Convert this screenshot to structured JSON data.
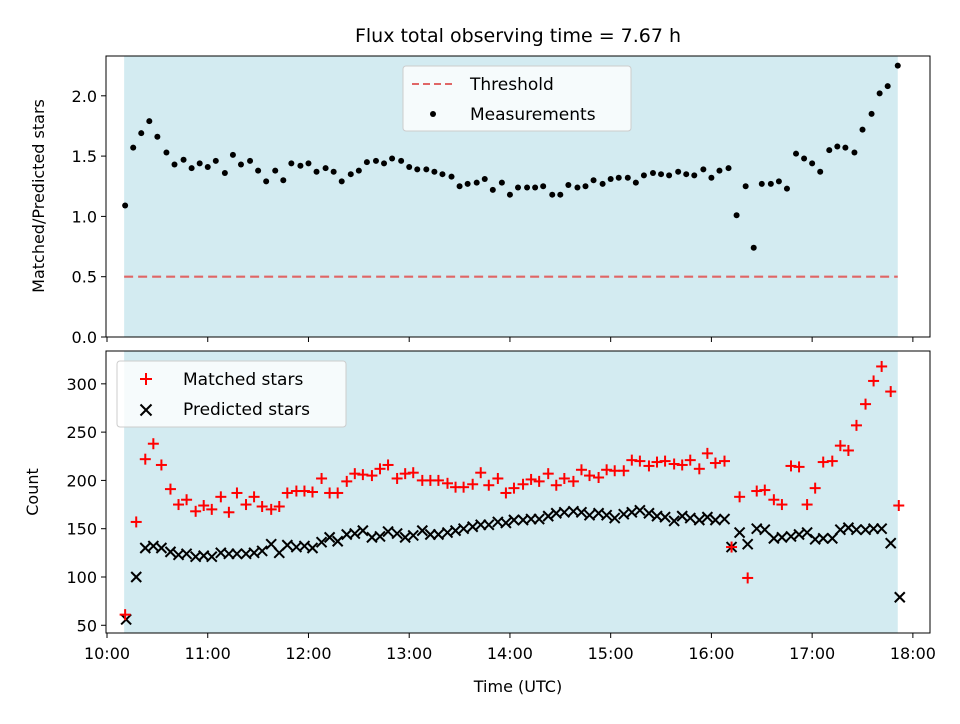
{
  "title": "Flux total observing time = 7.67 h",
  "colors": {
    "shade": "#a8d8e4",
    "threshold": "#e06666",
    "measurement": "#000000",
    "matched": "#ff0000",
    "predicted": "#000000"
  },
  "chart_data": [
    {
      "type": "scatter",
      "ylabel": "Matched/Predicted stars",
      "ylim": [
        0,
        2.33
      ],
      "yticks": [
        0.0,
        0.5,
        1.0,
        1.5,
        2.0
      ],
      "ytick_labels": [
        "0.0",
        "0.5",
        "1.0",
        "1.5",
        "2.0"
      ],
      "xlim": [
        9.99,
        18.17
      ],
      "observing_window": [
        10.17,
        17.85
      ],
      "legend": [
        "Threshold",
        "Measurements"
      ],
      "legend_position": "top-center",
      "threshold": 0.5,
      "series": [
        {
          "name": "Measurements",
          "x": [
            10.18,
            10.26,
            10.34,
            10.42,
            10.5,
            10.59,
            10.67,
            10.76,
            10.84,
            10.92,
            11.0,
            11.08,
            11.17,
            11.25,
            11.33,
            11.42,
            11.5,
            11.58,
            11.67,
            11.75,
            11.83,
            11.92,
            12.0,
            12.08,
            12.17,
            12.25,
            12.33,
            12.42,
            12.5,
            12.58,
            12.67,
            12.75,
            12.83,
            12.92,
            13.0,
            13.08,
            13.17,
            13.25,
            13.33,
            13.42,
            13.5,
            13.58,
            13.67,
            13.75,
            13.83,
            13.92,
            14.0,
            14.08,
            14.17,
            14.25,
            14.33,
            14.42,
            14.5,
            14.58,
            14.67,
            14.75,
            14.83,
            14.92,
            15.0,
            15.08,
            15.17,
            15.25,
            15.33,
            15.42,
            15.5,
            15.58,
            15.67,
            15.75,
            15.83,
            15.92,
            16.0,
            16.08,
            16.17,
            16.25,
            16.34,
            16.42,
            16.5,
            16.59,
            16.67,
            16.75,
            16.84,
            16.92,
            17.0,
            17.08,
            17.17,
            17.25,
            17.33,
            17.42,
            17.5,
            17.59,
            17.67,
            17.75,
            17.85
          ],
          "y": [
            1.09,
            1.57,
            1.69,
            1.79,
            1.66,
            1.53,
            1.43,
            1.47,
            1.4,
            1.44,
            1.41,
            1.46,
            1.36,
            1.51,
            1.43,
            1.46,
            1.38,
            1.29,
            1.38,
            1.3,
            1.44,
            1.42,
            1.44,
            1.37,
            1.4,
            1.37,
            1.29,
            1.35,
            1.38,
            1.45,
            1.46,
            1.44,
            1.48,
            1.46,
            1.41,
            1.39,
            1.39,
            1.37,
            1.35,
            1.33,
            1.25,
            1.27,
            1.28,
            1.31,
            1.22,
            1.28,
            1.18,
            1.24,
            1.24,
            1.24,
            1.25,
            1.18,
            1.18,
            1.26,
            1.24,
            1.25,
            1.3,
            1.27,
            1.31,
            1.32,
            1.32,
            1.28,
            1.34,
            1.36,
            1.35,
            1.34,
            1.37,
            1.35,
            1.34,
            1.39,
            1.32,
            1.38,
            1.4,
            1.01,
            1.25,
            0.74,
            1.27,
            1.27,
            1.29,
            1.23,
            1.52,
            1.48,
            1.44,
            1.37,
            1.55,
            1.58,
            1.57,
            1.53,
            1.72,
            1.85,
            2.02,
            2.08,
            2.25
          ]
        }
      ]
    },
    {
      "type": "scatter",
      "ylabel": "Count",
      "xlabel": "Time (UTC)",
      "ylim": [
        42,
        334
      ],
      "yticks": [
        50,
        100,
        150,
        200,
        250,
        300
      ],
      "ytick_labels": [
        "50",
        "100",
        "150",
        "200",
        "250",
        "300"
      ],
      "xlim": [
        9.99,
        18.17
      ],
      "xticks": [
        10,
        11,
        12,
        13,
        14,
        15,
        16,
        17,
        18
      ],
      "xtick_labels": [
        "10:00",
        "11:00",
        "12:00",
        "13:00",
        "14:00",
        "15:00",
        "16:00",
        "17:00",
        "18:00"
      ],
      "observing_window": [
        10.17,
        17.85
      ],
      "legend": [
        "Matched stars",
        "Predicted stars"
      ],
      "legend_position": "top-left",
      "series": [
        {
          "name": "Matched stars",
          "x": [
            10.18,
            10.29,
            10.38,
            10.46,
            10.54,
            10.63,
            10.71,
            10.79,
            10.88,
            10.96,
            11.04,
            11.13,
            11.21,
            11.29,
            11.38,
            11.46,
            11.54,
            11.63,
            11.71,
            11.79,
            11.88,
            11.96,
            12.04,
            12.13,
            12.21,
            12.29,
            12.38,
            12.46,
            12.54,
            12.63,
            12.71,
            12.79,
            12.88,
            12.96,
            13.04,
            13.13,
            13.21,
            13.29,
            13.38,
            13.46,
            13.54,
            13.63,
            13.71,
            13.79,
            13.88,
            13.96,
            14.04,
            14.13,
            14.21,
            14.29,
            14.38,
            14.46,
            14.54,
            14.63,
            14.71,
            14.79,
            14.88,
            14.96,
            15.04,
            15.13,
            15.21,
            15.29,
            15.38,
            15.46,
            15.54,
            15.63,
            15.71,
            15.79,
            15.88,
            15.96,
            16.04,
            16.13,
            16.2,
            16.28,
            16.36,
            16.45,
            16.53,
            16.62,
            16.7,
            16.79,
            16.87,
            16.95,
            17.03,
            17.11,
            17.2,
            17.28,
            17.36,
            17.44,
            17.53,
            17.61,
            17.69,
            17.78,
            17.86
          ],
          "y": [
            61,
            157,
            222,
            238,
            216,
            191,
            175,
            180,
            168,
            174,
            170,
            183,
            167,
            187,
            175,
            183,
            173,
            170,
            173,
            187,
            189,
            189,
            188,
            202,
            187,
            187,
            199,
            207,
            206,
            205,
            212,
            216,
            202,
            207,
            208,
            200,
            200,
            200,
            197,
            193,
            193,
            196,
            208,
            195,
            202,
            187,
            192,
            196,
            201,
            199,
            207,
            195,
            202,
            199,
            211,
            205,
            203,
            211,
            210,
            210,
            221,
            220,
            215,
            219,
            220,
            217,
            216,
            221,
            212,
            228,
            218,
            220,
            131,
            183,
            99,
            189,
            190,
            180,
            175,
            215,
            214,
            175,
            192,
            219,
            220,
            236,
            231,
            257,
            279,
            303,
            318,
            292,
            174
          ]
        },
        {
          "name": "Predicted stars",
          "x": [
            10.19,
            10.29,
            10.38,
            10.46,
            10.54,
            10.63,
            10.71,
            10.79,
            10.88,
            10.96,
            11.04,
            11.13,
            11.21,
            11.29,
            11.38,
            11.46,
            11.54,
            11.63,
            11.71,
            11.79,
            11.88,
            11.96,
            12.04,
            12.13,
            12.21,
            12.29,
            12.38,
            12.46,
            12.54,
            12.63,
            12.71,
            12.79,
            12.88,
            12.96,
            13.04,
            13.13,
            13.21,
            13.29,
            13.38,
            13.46,
            13.54,
            13.63,
            13.71,
            13.79,
            13.88,
            13.96,
            14.04,
            14.13,
            14.21,
            14.29,
            14.38,
            14.46,
            14.54,
            14.63,
            14.71,
            14.79,
            14.88,
            14.96,
            15.04,
            15.13,
            15.21,
            15.29,
            15.38,
            15.46,
            15.54,
            15.63,
            15.71,
            15.79,
            15.88,
            15.96,
            16.04,
            16.13,
            16.2,
            16.28,
            16.36,
            16.45,
            16.53,
            16.62,
            16.7,
            16.79,
            16.87,
            16.95,
            17.03,
            17.11,
            17.2,
            17.28,
            17.36,
            17.44,
            17.53,
            17.61,
            17.69,
            17.78,
            17.87
          ],
          "y": [
            56,
            100,
            130,
            132,
            130,
            126,
            123,
            124,
            121,
            122,
            121,
            125,
            124,
            124,
            124,
            125,
            127,
            134,
            125,
            133,
            131,
            132,
            130,
            136,
            141,
            137,
            144,
            145,
            148,
            141,
            142,
            147,
            145,
            141,
            143,
            148,
            144,
            144,
            146,
            148,
            150,
            152,
            154,
            154,
            157,
            156,
            159,
            159,
            160,
            160,
            163,
            166,
            167,
            168,
            167,
            164,
            166,
            164,
            161,
            165,
            167,
            169,
            166,
            163,
            162,
            158,
            163,
            161,
            159,
            162,
            159,
            160,
            131,
            146,
            134,
            150,
            149,
            140,
            141,
            142,
            144,
            146,
            139,
            140,
            140,
            149,
            151,
            149,
            149,
            150,
            150,
            135,
            79
          ]
        }
      ]
    }
  ]
}
